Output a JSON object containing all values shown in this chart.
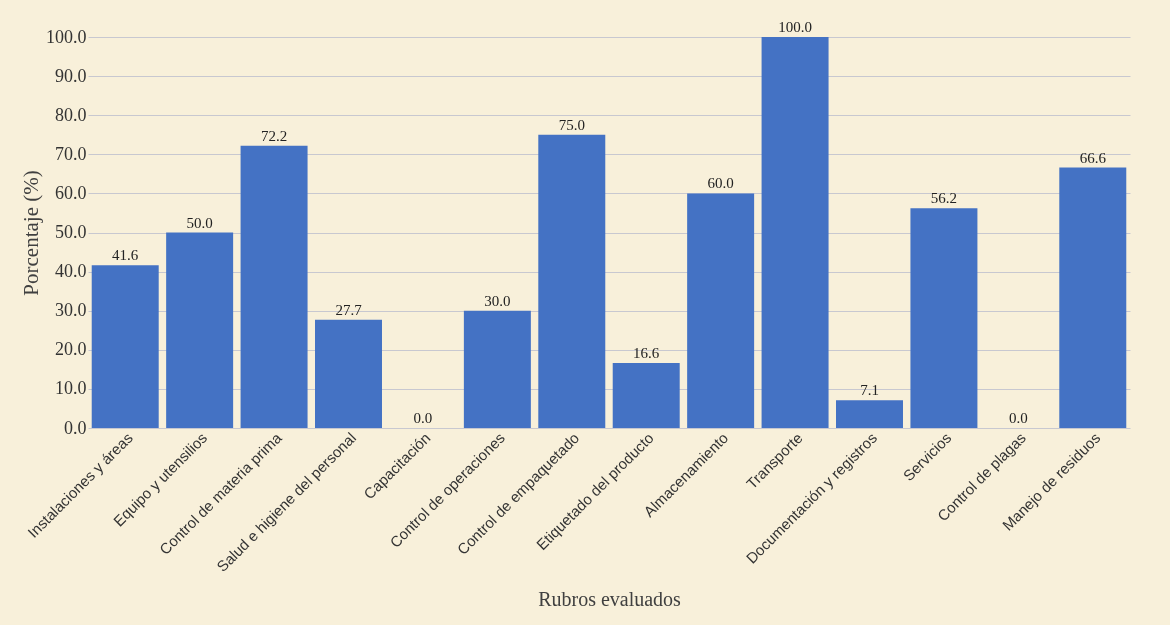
{
  "chart_data": {
    "type": "bar",
    "categories": [
      "Instalaciones y áreas",
      "Equipo y utensilios",
      "Control de materia prima",
      "Salud e higiene del personal",
      "Capacitación",
      "Control de operaciones",
      "Control de empaquetado",
      "Etiquetado del producto",
      "Almacenamiento",
      "Transporte",
      "Documentación y registros",
      "Servicios",
      "Control de plagas",
      "Manejo de residuos"
    ],
    "values": [
      41.6,
      50.0,
      72.2,
      27.7,
      0.0,
      30.0,
      75.0,
      16.6,
      60.0,
      100.0,
      7.1,
      56.2,
      0.0,
      66.6
    ],
    "value_labels": [
      "41.6",
      "50.0",
      "72.2",
      "27.7",
      "0.0",
      "30.0",
      "75.0",
      "16.6",
      "60.0",
      "100.0",
      "7.1",
      "56.2",
      "0.0",
      "66.6"
    ],
    "color": "#4472c4",
    "xlabel": "Rubros evaluados",
    "ylabel": "Porcentaje (%)",
    "ylim": [
      0,
      100
    ],
    "yticks": [
      {
        "value": 0,
        "label": "0.0"
      },
      {
        "value": 10,
        "label": "10.0"
      },
      {
        "value": 20,
        "label": "20.0"
      },
      {
        "value": 30,
        "label": "30.0"
      },
      {
        "value": 40,
        "label": "40.0"
      },
      {
        "value": 50,
        "label": "50.0"
      },
      {
        "value": 60,
        "label": "60.0"
      },
      {
        "value": 70,
        "label": "70.0"
      },
      {
        "value": 80,
        "label": "80.0"
      },
      {
        "value": 90,
        "label": "90.0"
      },
      {
        "value": 100,
        "label": "100.0"
      }
    ],
    "grid": "y"
  }
}
